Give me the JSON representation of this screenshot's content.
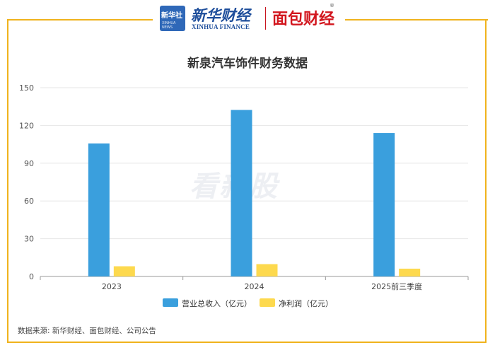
{
  "header": {
    "logo_text": "新华社",
    "logo_subtext": "XINHUA NEWS",
    "brand_cn": "新华财经",
    "brand_en": "XINHUA FINANCE",
    "partner": "面包财经",
    "registered_mark": "®"
  },
  "watermark": "看新股",
  "source_note": "数据来源: 新华财经、面包财经、公司公告",
  "colors": {
    "frame": "#f0b31d",
    "revenue": "#3a9fdd",
    "profit": "#fdd94e"
  },
  "chart_data": {
    "type": "bar",
    "title": "新泉汽车饰件财务数据",
    "categories": [
      "2023",
      "2024",
      "2025前三季度"
    ],
    "series": [
      {
        "name": "营业总收入（亿元）",
        "values": [
          105.7,
          132.3,
          114.0
        ]
      },
      {
        "name": "净利润（亿元）",
        "values": [
          8.1,
          9.8,
          6.2
        ]
      }
    ],
    "ylim": [
      0,
      150
    ],
    "yticks": [
      0,
      30,
      60,
      90,
      120,
      150
    ],
    "xlabel": "",
    "ylabel": "",
    "grid": true,
    "legend": "bottom"
  }
}
